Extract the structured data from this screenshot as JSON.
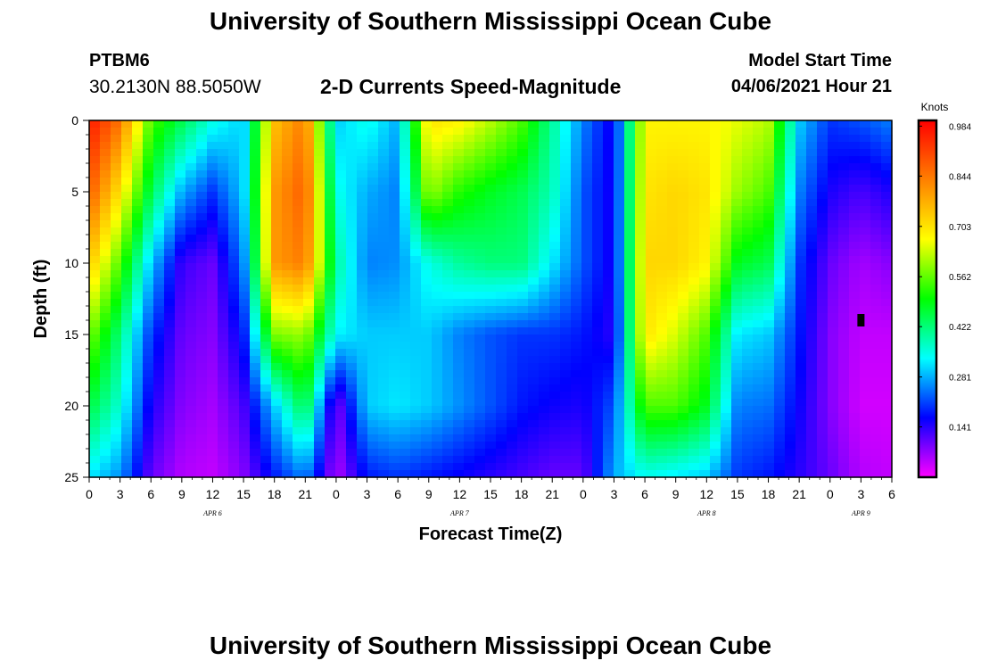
{
  "header": {
    "title": "University of Southern Mississippi Ocean Cube",
    "station_id": "PTBM6",
    "station_location": "30.2130N  88.5050W",
    "subtitle": "2-D Currents Speed-Magnitude",
    "model_start_label": "Model Start Time",
    "model_start_value": "04/06/2021 Hour 21"
  },
  "footer": {
    "title": "University of Southern Mississippi Ocean Cube"
  },
  "chart_data": {
    "type": "heatmap",
    "title": "2-D Currents Speed-Magnitude",
    "xlabel": "Forecast Time(Z)",
    "ylabel": "Depth (ft)",
    "x_tick_labels": [
      "0",
      "3",
      "6",
      "9",
      "12",
      "15",
      "18",
      "21",
      "0",
      "3",
      "6",
      "9",
      "12",
      "15",
      "18",
      "21",
      "0",
      "3",
      "6",
      "9",
      "12",
      "15",
      "18",
      "21",
      "0",
      "3",
      "6"
    ],
    "x_date_labels": [
      {
        "label": "APR  6",
        "tick_index": 4
      },
      {
        "label": "APR  7",
        "tick_index": 12
      },
      {
        "label": "APR  8",
        "tick_index": 20
      },
      {
        "label": "APR  9",
        "tick_index": 25
      }
    ],
    "y_ticks": [
      0,
      5,
      10,
      15,
      20,
      25
    ],
    "ylim": [
      0,
      25
    ],
    "y_inverted": true,
    "colorbar": {
      "label": "Knots",
      "tick_labels": [
        "0.984",
        "0.844",
        "0.703",
        "0.562",
        "0.422",
        "0.281",
        "0.141"
      ],
      "tick_values": [
        0.984,
        0.844,
        0.703,
        0.562,
        0.422,
        0.281,
        0.141
      ],
      "range": [
        0.0,
        1.0
      ],
      "colors": [
        "#ff00ff",
        "#8000ff",
        "#0000ff",
        "#0080ff",
        "#00ffff",
        "#00ff80",
        "#00ff00",
        "#80ff00",
        "#ffff00",
        "#ffc000",
        "#ff8000",
        "#ff4000",
        "#ff0000"
      ]
    },
    "marker": {
      "time_hours": 75,
      "depth_ft": 14
    },
    "time_hours": [
      0,
      3,
      6,
      9,
      12,
      15,
      18,
      21,
      24,
      27,
      30,
      33,
      36,
      39,
      42,
      45,
      48,
      51,
      54,
      57,
      60,
      63,
      66,
      69,
      72,
      75,
      78
    ],
    "depth_ft": [
      0,
      5,
      10,
      15,
      20,
      25
    ],
    "values": [
      [
        0.97,
        0.85,
        0.55,
        0.45,
        0.35,
        0.3,
        0.75,
        0.84,
        0.3,
        0.35,
        0.28,
        0.7,
        0.68,
        0.62,
        0.55,
        0.4,
        0.25,
        0.15,
        0.68,
        0.68,
        0.68,
        0.65,
        0.62,
        0.3,
        0.2,
        0.22,
        0.25
      ],
      [
        0.88,
        0.7,
        0.45,
        0.28,
        0.2,
        0.3,
        0.8,
        0.88,
        0.35,
        0.28,
        0.25,
        0.6,
        0.52,
        0.48,
        0.45,
        0.38,
        0.22,
        0.15,
        0.7,
        0.72,
        0.7,
        0.6,
        0.55,
        0.25,
        0.15,
        0.12,
        0.15
      ],
      [
        0.74,
        0.55,
        0.3,
        0.13,
        0.1,
        0.25,
        0.8,
        0.84,
        0.4,
        0.25,
        0.26,
        0.35,
        0.4,
        0.42,
        0.42,
        0.32,
        0.22,
        0.15,
        0.72,
        0.72,
        0.68,
        0.48,
        0.45,
        0.2,
        0.1,
        0.06,
        0.08
      ],
      [
        0.58,
        0.42,
        0.2,
        0.1,
        0.08,
        0.18,
        0.58,
        0.6,
        0.33,
        0.3,
        0.3,
        0.3,
        0.25,
        0.22,
        0.2,
        0.2,
        0.18,
        0.14,
        0.7,
        0.64,
        0.55,
        0.32,
        0.3,
        0.18,
        0.08,
        0.04,
        0.04
      ],
      [
        0.46,
        0.36,
        0.15,
        0.08,
        0.06,
        0.12,
        0.3,
        0.46,
        0.08,
        0.3,
        0.32,
        0.3,
        0.26,
        0.22,
        0.18,
        0.16,
        0.15,
        0.22,
        0.55,
        0.55,
        0.48,
        0.25,
        0.24,
        0.16,
        0.08,
        0.03,
        0.03
      ],
      [
        0.32,
        0.26,
        0.1,
        0.05,
        0.04,
        0.08,
        0.18,
        0.25,
        0.05,
        0.18,
        0.2,
        0.18,
        0.16,
        0.14,
        0.12,
        0.1,
        0.1,
        0.28,
        0.34,
        0.32,
        0.3,
        0.2,
        0.18,
        0.14,
        0.1,
        0.05,
        0.04
      ]
    ]
  }
}
